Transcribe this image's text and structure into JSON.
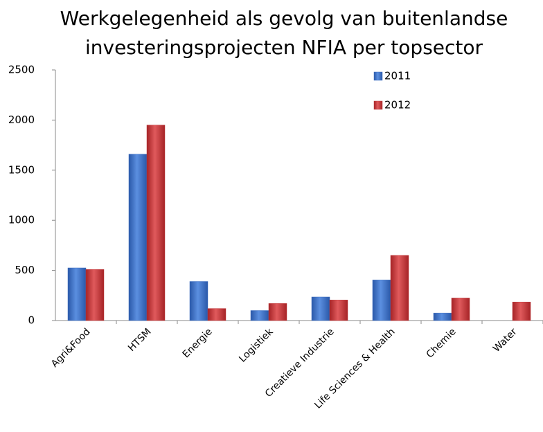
{
  "chart_data": {
    "type": "bar",
    "title": [
      "Werkgelegenheid  als gevolg van buitenlandse",
      "investeringsprojecten  NFIA per topsector"
    ],
    "categories": [
      "Agri&Food",
      "HTSM",
      "Energie",
      "Logistiek",
      "Creatieve Industrie",
      "Life Sciences & Health",
      "Chemie",
      "Water"
    ],
    "series": [
      {
        "name": "2011",
        "color": "#3f6fc0",
        "values": [
          525,
          1660,
          390,
          100,
          235,
          405,
          75,
          0
        ]
      },
      {
        "name": "2012",
        "color": "#c0393b",
        "values": [
          510,
          1950,
          120,
          170,
          205,
          650,
          225,
          185
        ]
      }
    ],
    "ylim": [
      0,
      2500
    ],
    "yticks": [
      0,
      500,
      1000,
      1500,
      2000,
      2500
    ],
    "grid": false,
    "legend": "top-right"
  }
}
